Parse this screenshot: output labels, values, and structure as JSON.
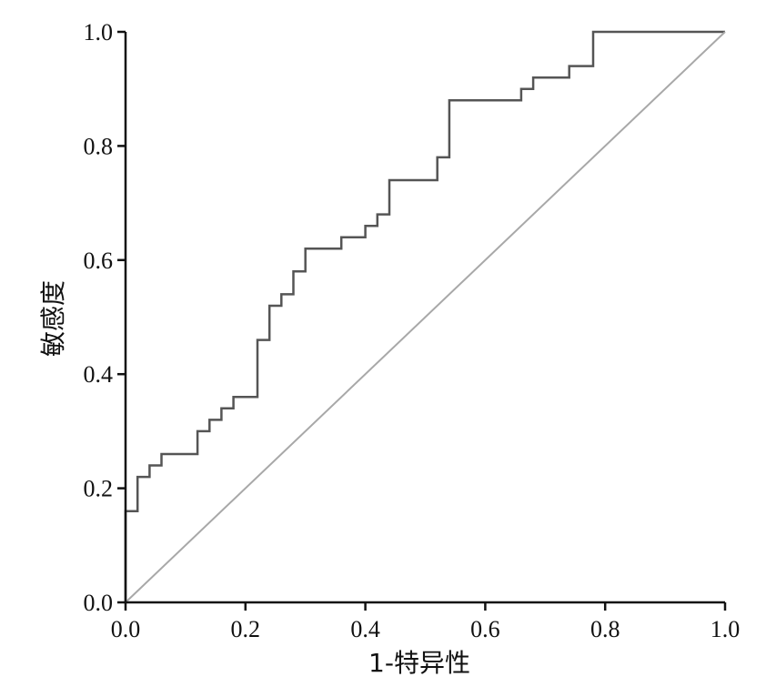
{
  "chart_data": {
    "type": "line",
    "title": "",
    "xlabel": "1-特异性",
    "ylabel": "敏感度",
    "xlim": [
      0,
      1
    ],
    "ylim": [
      0,
      1
    ],
    "x_ticks": [
      "0.0",
      "0.2",
      "0.4",
      "0.6",
      "0.8",
      "1.0"
    ],
    "y_ticks": [
      "0.0",
      "0.2",
      "0.4",
      "0.6",
      "0.8",
      "1.0"
    ],
    "grid": false,
    "legend": "none",
    "series": [
      {
        "style": "step",
        "color": "#555555",
        "x": [
          0,
          0,
          0.02,
          0.02,
          0.04,
          0.04,
          0.06,
          0.06,
          0.12,
          0.12,
          0.14,
          0.14,
          0.16,
          0.16,
          0.18,
          0.18,
          0.22,
          0.22,
          0.24,
          0.24,
          0.26,
          0.26,
          0.28,
          0.28,
          0.3,
          0.3,
          0.36,
          0.36,
          0.4,
          0.4,
          0.42,
          0.42,
          0.44,
          0.44,
          0.52,
          0.52,
          0.54,
          0.54,
          0.66,
          0.66,
          0.68,
          0.68,
          0.74,
          0.74,
          0.78,
          0.78,
          1.0
        ],
        "y": [
          0,
          0.16,
          0.16,
          0.22,
          0.22,
          0.24,
          0.24,
          0.26,
          0.26,
          0.3,
          0.3,
          0.32,
          0.32,
          0.34,
          0.34,
          0.36,
          0.36,
          0.46,
          0.46,
          0.52,
          0.52,
          0.54,
          0.54,
          0.58,
          0.58,
          0.62,
          0.62,
          0.64,
          0.64,
          0.66,
          0.66,
          0.68,
          0.68,
          0.74,
          0.74,
          0.78,
          0.78,
          0.88,
          0.88,
          0.9,
          0.9,
          0.92,
          0.92,
          0.94,
          0.94,
          1.0,
          1.0
        ]
      },
      {
        "style": "reference",
        "color": "#a8a8a8",
        "x": [
          0,
          1
        ],
        "y": [
          0,
          1
        ]
      }
    ]
  }
}
